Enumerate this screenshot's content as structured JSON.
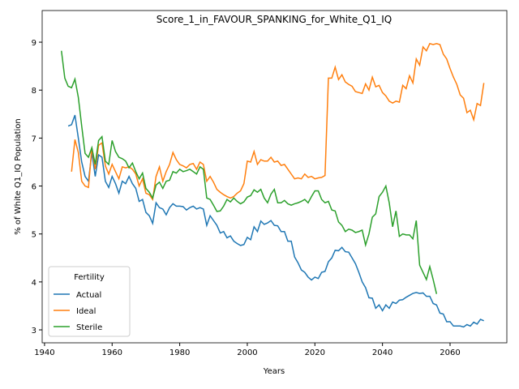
{
  "chart_data": {
    "type": "line",
    "title": "Score_1_in_FAVOUR_SPANKING_for_White_Q1_IQ",
    "x_label": "Years",
    "y_label": "% of White Q1_IQ Population",
    "x": [
      1945,
      1946,
      1947,
      1948,
      1949,
      1950,
      1951,
      1952,
      1953,
      1954,
      1955,
      1956,
      1957,
      1958,
      1959,
      1960,
      1961,
      1962,
      1963,
      1964,
      1965,
      1966,
      1967,
      1968,
      1969,
      1970,
      1971,
      1972,
      1973,
      1974,
      1975,
      1976,
      1977,
      1978,
      1979,
      1980,
      1981,
      1982,
      1983,
      1984,
      1985,
      1986,
      1987,
      1988,
      1989,
      1990,
      1991,
      1992,
      1993,
      1994,
      1995,
      1996,
      1997,
      1998,
      1999,
      2000,
      2001,
      2002,
      2003,
      2004,
      2005,
      2006,
      2007,
      2008,
      2009,
      2010,
      2011,
      2012,
      2013,
      2014,
      2015,
      2016,
      2017,
      2018,
      2019,
      2020,
      2021,
      2022,
      2023,
      2024,
      2025,
      2026,
      2027,
      2028,
      2029,
      2030,
      2031,
      2032,
      2033,
      2034,
      2035,
      2036,
      2037,
      2038,
      2039,
      2040,
      2041,
      2042,
      2043,
      2044,
      2045,
      2046,
      2047,
      2048,
      2049,
      2050,
      2051,
      2052,
      2053,
      2054,
      2055,
      2056,
      2057,
      2058,
      2059,
      2060,
      2061,
      2062,
      2063,
      2064,
      2065,
      2066,
      2067,
      2068,
      2069,
      2070
    ],
    "series": [
      {
        "name": "Actual",
        "color": "#1f77b4",
        "values": [
          null,
          null,
          7.25,
          7.28,
          7.48,
          7.0,
          6.5,
          6.2,
          6.1,
          6.7,
          6.2,
          6.65,
          6.6,
          6.1,
          5.97,
          6.2,
          6.05,
          5.85,
          6.1,
          6.05,
          6.2,
          6.05,
          5.95,
          5.68,
          5.72,
          5.45,
          5.38,
          5.22,
          5.65,
          5.55,
          5.52,
          5.4,
          5.55,
          5.63,
          5.58,
          5.58,
          5.57,
          5.5,
          5.55,
          5.58,
          5.52,
          5.55,
          5.52,
          5.18,
          5.38,
          5.28,
          5.18,
          5.02,
          5.05,
          4.92,
          4.96,
          4.85,
          4.8,
          4.76,
          4.78,
          4.93,
          4.88,
          5.15,
          5.05,
          5.27,
          5.2,
          5.23,
          5.28,
          5.18,
          5.17,
          5.05,
          5.05,
          4.85,
          4.85,
          4.52,
          4.4,
          4.25,
          4.2,
          4.1,
          4.04,
          4.1,
          4.07,
          4.2,
          4.22,
          4.42,
          4.5,
          4.66,
          4.65,
          4.72,
          4.63,
          4.62,
          4.5,
          4.38,
          4.2,
          4.0,
          3.88,
          3.67,
          3.66,
          3.45,
          3.52,
          3.4,
          3.52,
          3.45,
          3.58,
          3.55,
          3.62,
          3.63,
          3.68,
          3.72,
          3.76,
          3.78,
          3.76,
          3.77,
          3.7,
          3.7,
          3.55,
          3.52,
          3.35,
          3.33,
          3.17,
          3.17,
          3.08,
          3.08,
          3.08,
          3.06,
          3.11,
          3.08,
          3.16,
          3.12,
          3.22,
          3.19
        ]
      },
      {
        "name": "Ideal",
        "color": "#ff7f0e",
        "values": [
          null,
          null,
          null,
          6.3,
          6.97,
          6.7,
          6.1,
          6.0,
          5.97,
          6.8,
          6.35,
          6.85,
          6.9,
          6.42,
          6.25,
          6.45,
          6.3,
          6.15,
          6.4,
          6.38,
          6.4,
          6.35,
          6.25,
          6.0,
          6.15,
          5.85,
          5.82,
          5.72,
          6.2,
          6.4,
          6.1,
          6.3,
          6.45,
          6.7,
          6.55,
          6.45,
          6.42,
          6.38,
          6.45,
          6.47,
          6.35,
          6.5,
          6.45,
          6.1,
          6.2,
          6.08,
          5.93,
          5.87,
          5.82,
          5.78,
          5.75,
          5.78,
          5.85,
          5.9,
          6.05,
          6.52,
          6.5,
          6.72,
          6.45,
          6.55,
          6.52,
          6.52,
          6.6,
          6.5,
          6.52,
          6.43,
          6.45,
          6.35,
          6.25,
          6.15,
          6.17,
          6.15,
          6.25,
          6.18,
          6.2,
          6.15,
          6.17,
          6.18,
          6.22,
          8.25,
          8.25,
          8.48,
          8.22,
          8.32,
          8.17,
          8.12,
          8.08,
          7.97,
          7.95,
          7.93,
          8.13,
          8.0,
          8.27,
          8.07,
          8.1,
          7.95,
          7.88,
          7.77,
          7.73,
          7.77,
          7.75,
          8.1,
          8.03,
          8.3,
          8.15,
          8.65,
          8.52,
          8.9,
          8.82,
          8.97,
          8.95,
          8.97,
          8.95,
          8.75,
          8.65,
          8.45,
          8.27,
          8.12,
          7.9,
          7.83,
          7.53,
          7.58,
          7.38,
          7.72,
          7.68,
          8.15
        ]
      },
      {
        "name": "Sterile",
        "color": "#2ca02c",
        "values": [
          8.82,
          8.25,
          8.08,
          8.05,
          8.23,
          7.85,
          7.25,
          6.68,
          6.6,
          6.8,
          6.45,
          6.95,
          7.03,
          6.52,
          6.45,
          6.95,
          6.72,
          6.6,
          6.57,
          6.52,
          6.38,
          6.48,
          6.3,
          6.15,
          6.27,
          5.95,
          5.87,
          5.75,
          6.02,
          6.08,
          5.95,
          6.1,
          6.12,
          6.3,
          6.27,
          6.35,
          6.3,
          6.32,
          6.35,
          6.3,
          6.25,
          6.4,
          6.35,
          5.75,
          5.72,
          5.6,
          5.47,
          5.48,
          5.58,
          5.72,
          5.67,
          5.75,
          5.68,
          5.63,
          5.67,
          5.77,
          5.8,
          5.92,
          5.87,
          5.93,
          5.75,
          5.65,
          5.83,
          5.93,
          5.65,
          5.65,
          5.7,
          5.63,
          5.6,
          5.63,
          5.65,
          5.68,
          5.72,
          5.65,
          5.78,
          5.9,
          5.9,
          5.72,
          5.65,
          5.68,
          5.5,
          5.48,
          5.25,
          5.18,
          5.05,
          5.1,
          5.08,
          5.03,
          5.05,
          5.08,
          4.77,
          5.0,
          5.35,
          5.42,
          5.78,
          5.87,
          6.0,
          5.65,
          5.15,
          5.48,
          4.95,
          5.0,
          4.98,
          4.98,
          4.9,
          5.28,
          4.35,
          4.2,
          4.05,
          4.32,
          4.05,
          3.75,
          null,
          null,
          null,
          null,
          null,
          null,
          null,
          null,
          null,
          null,
          null,
          null,
          null,
          null
        ]
      }
    ],
    "xlim": [
      1939.3,
      2076.8
    ],
    "ylim": [
      2.73,
      9.66
    ],
    "xticks": [
      1940,
      1960,
      1980,
      2000,
      2020,
      2040,
      2060
    ],
    "yticks": [
      3,
      4,
      5,
      6,
      7,
      8,
      9
    ],
    "grid": false,
    "legend": "lower left",
    "legend_title": "Fertility"
  }
}
